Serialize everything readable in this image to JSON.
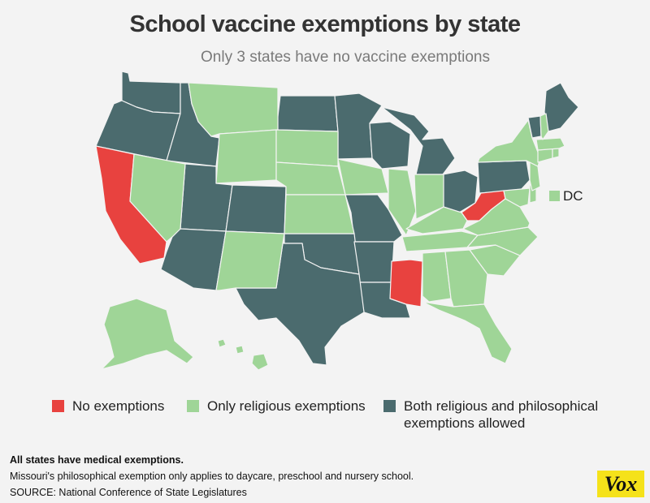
{
  "title": "School vaccine exemptions by state",
  "subtitle": "Only 3 states have no vaccine exemptions",
  "colors": {
    "none": "#e8423f",
    "religious": "#9fd597",
    "both": "#4b6b6e",
    "border": "#f3f3f3"
  },
  "dc_label": "DC",
  "legend": [
    {
      "key": "none",
      "label": "No exemptions"
    },
    {
      "key": "religious",
      "label": "Only religious exemptions"
    },
    {
      "key": "both",
      "label": "Both religious and philosophical exemptions allowed"
    }
  ],
  "notes": [
    "All states have medical exemptions.",
    "Missouri's philosophical exemption only applies to daycare, preschool and nursery school.",
    "SOURCE: National Conference of State Legislatures"
  ],
  "brand": "Vox",
  "states": {
    "no_exemptions": [
      "California",
      "West Virginia",
      "Mississippi"
    ],
    "only_religious": [
      "Montana",
      "Wyoming",
      "South Dakota",
      "Nebraska",
      "Kansas",
      "Iowa",
      "Illinois",
      "Indiana",
      "Kentucky",
      "Tennessee",
      "Alabama",
      "Georgia",
      "Florida",
      "South Carolina",
      "North Carolina",
      "Virginia",
      "Maryland",
      "Delaware",
      "New Jersey",
      "New York",
      "Connecticut",
      "Rhode Island",
      "Massachusetts",
      "New Hampshire",
      "Nevada",
      "New Mexico",
      "Alaska",
      "Hawaii",
      "DC"
    ],
    "both_religious_and_philosophical": [
      "Washington",
      "Oregon",
      "Idaho",
      "Utah",
      "Arizona",
      "Colorado",
      "North Dakota",
      "Minnesota",
      "Wisconsin",
      "Michigan",
      "Ohio",
      "Pennsylvania",
      "Vermont",
      "Maine",
      "Missouri",
      "Arkansas",
      "Louisiana",
      "Oklahoma",
      "Texas"
    ]
  }
}
